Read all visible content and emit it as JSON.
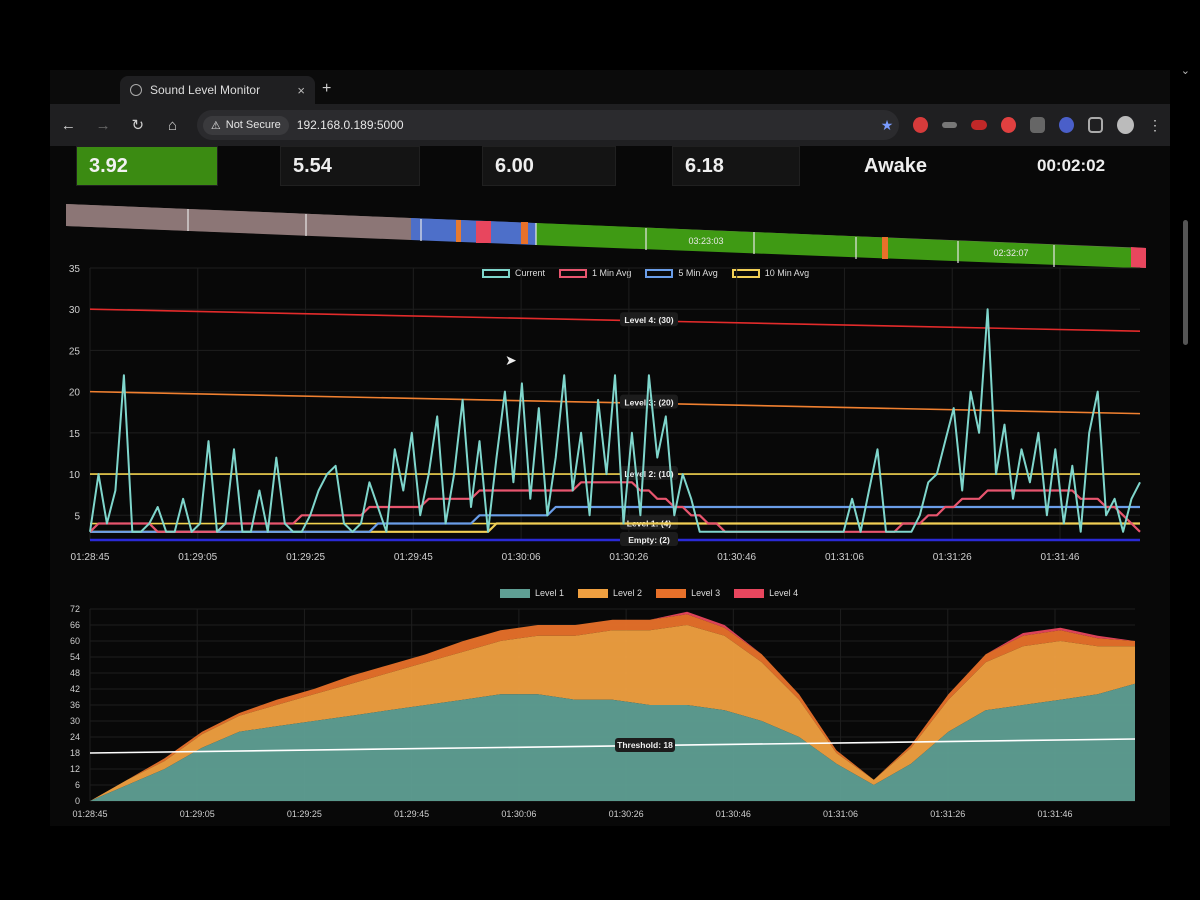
{
  "browser": {
    "tab_title": "Sound Level Monitor",
    "tab_close": "×",
    "new_tab": "+",
    "security_label": "Not Secure",
    "url": "192.168.0.189:5000"
  },
  "stats": {
    "current": "3.92",
    "avg1": "5.54",
    "avg5": "6.00",
    "avg10": "6.18",
    "state": "Awake",
    "timer": "00:02:02"
  },
  "timeline": {
    "labels": [
      "03:23:03",
      "02:32:07"
    ]
  },
  "chart_data": [
    {
      "type": "line",
      "legend": [
        "Current",
        "1 Min Avg",
        "5 Min Avg",
        "10 Min Avg"
      ],
      "x_ticks": [
        "01:28:45",
        "01:29:05",
        "01:29:25",
        "01:29:45",
        "01:30:06",
        "01:30:26",
        "01:30:46",
        "01:31:06",
        "01:31:26",
        "01:31:46"
      ],
      "y_ticks": [
        5,
        10,
        15,
        20,
        25,
        30,
        35
      ],
      "ylim": [
        2,
        35
      ],
      "grid": true,
      "colors": {
        "current": "#7fd6cc",
        "avg1": "#e8556e",
        "avg5": "#6a9de8",
        "avg10": "#f2cf55"
      },
      "thresholds": [
        {
          "label": "Level 4: (30)",
          "value": 30,
          "color": "#e32b2b"
        },
        {
          "label": "Level 3: (20)",
          "value": 20,
          "color": "#f08030"
        },
        {
          "label": "Level 2: (10)",
          "value": 10,
          "color": "#f2d34f"
        },
        {
          "label": "Level 1: (4)",
          "value": 4,
          "color": "#f2d34f"
        },
        {
          "label": "Empty: (2)",
          "value": 2,
          "color": "#2a2ad6"
        }
      ],
      "series": [
        {
          "name": "Current",
          "values": [
            3,
            10,
            4,
            8,
            22,
            3,
            3,
            4,
            6,
            3,
            3,
            7,
            3,
            4,
            14,
            3,
            4,
            13,
            3,
            3,
            8,
            3,
            12,
            4,
            3,
            3,
            5,
            8,
            10,
            11,
            4,
            3,
            4,
            9,
            6,
            3,
            13,
            8,
            15,
            5,
            10,
            17,
            4,
            10,
            19,
            6,
            14,
            3,
            12,
            20,
            9,
            21,
            7,
            18,
            5,
            12,
            22,
            8,
            15,
            5,
            19,
            10,
            22,
            4,
            15,
            5,
            22,
            12,
            17,
            5,
            10,
            7,
            3,
            3,
            3,
            3,
            3,
            3,
            3,
            3,
            3,
            3,
            3,
            3,
            3,
            3,
            3,
            3,
            3,
            3,
            7,
            3,
            8,
            13,
            3,
            3,
            3,
            3,
            5,
            9,
            10,
            14,
            18,
            8,
            20,
            15,
            30,
            10,
            16,
            7,
            13,
            9,
            15,
            5,
            13,
            4,
            11,
            3,
            15,
            20,
            5,
            7,
            3,
            7,
            9
          ]
        },
        {
          "name": "1 Min Avg",
          "values": [
            3,
            4,
            4,
            4,
            4,
            4,
            4,
            4,
            3,
            3,
            3,
            3,
            3,
            3,
            3,
            3,
            4,
            4,
            4,
            4,
            4,
            4,
            4,
            4,
            4,
            5,
            5,
            5,
            5,
            5,
            5,
            5,
            5,
            6,
            6,
            6,
            6,
            6,
            6,
            6,
            7,
            7,
            7,
            7,
            7,
            7,
            8,
            8,
            8,
            8,
            8,
            8,
            8,
            8,
            8,
            8,
            8,
            8,
            9,
            9,
            9,
            9,
            9,
            9,
            9,
            8,
            8,
            7,
            7,
            6,
            6,
            5,
            5,
            4,
            4,
            3,
            3,
            3,
            3,
            3,
            3,
            3,
            3,
            3,
            3,
            3,
            3,
            3,
            3,
            3,
            3,
            3,
            3,
            3,
            3,
            3,
            4,
            4,
            4,
            5,
            5,
            6,
            6,
            7,
            7,
            7,
            8,
            8,
            8,
            8,
            8,
            8,
            8,
            8,
            8,
            8,
            8,
            7,
            7,
            7,
            6,
            6,
            5,
            4,
            3
          ]
        },
        {
          "name": "5 Min Avg",
          "values": [
            3,
            3,
            3,
            3,
            3,
            3,
            3,
            3,
            3,
            3,
            3,
            3,
            3,
            3,
            3,
            3,
            3,
            3,
            3,
            3,
            3,
            3,
            3,
            3,
            3,
            3,
            3,
            3,
            3,
            3,
            3,
            3,
            3,
            3,
            4,
            4,
            4,
            4,
            4,
            4,
            4,
            4,
            4,
            4,
            4,
            4,
            5,
            5,
            5,
            5,
            5,
            5,
            5,
            5,
            5,
            6,
            6,
            6,
            6,
            6,
            6,
            6,
            6,
            6,
            6,
            6,
            6,
            6,
            6,
            6,
            6,
            6,
            6,
            6,
            6,
            6,
            6,
            6,
            6,
            6,
            6,
            6,
            6,
            6,
            6,
            6,
            6,
            6,
            6,
            6,
            6,
            6,
            6,
            6,
            6,
            6,
            6,
            6,
            6,
            6,
            6,
            6,
            6,
            6,
            6,
            6,
            6,
            6,
            6,
            6,
            6,
            6,
            6,
            6,
            6,
            6,
            6,
            6,
            6,
            6,
            6,
            6,
            6,
            6,
            6
          ]
        },
        {
          "name": "10 Min Avg",
          "values": [
            3,
            3,
            3,
            3,
            3,
            3,
            3,
            3,
            3,
            3,
            3,
            3,
            3,
            3,
            3,
            3,
            3,
            3,
            3,
            3,
            3,
            3,
            3,
            3,
            3,
            3,
            3,
            3,
            3,
            3,
            3,
            3,
            3,
            3,
            3,
            3,
            3,
            3,
            3,
            3,
            3,
            3,
            3,
            3,
            3,
            3,
            3,
            3,
            4,
            4,
            4,
            4,
            4,
            4,
            4,
            4,
            4,
            4,
            4,
            4,
            4,
            4,
            4,
            4,
            4,
            4,
            4,
            4,
            4,
            4,
            4,
            4,
            4,
            4,
            4,
            4,
            4,
            4,
            4,
            4,
            4,
            4,
            4,
            4,
            4,
            4,
            4,
            4,
            4,
            4,
            4,
            4,
            4,
            4,
            4,
            4,
            4,
            4,
            4,
            4,
            4,
            4,
            4,
            4,
            4,
            4,
            4,
            4,
            4,
            4,
            4,
            4,
            4,
            4,
            4,
            4,
            4,
            4,
            4,
            4,
            4,
            4,
            4,
            4,
            4
          ]
        }
      ]
    },
    {
      "type": "area",
      "stacked": true,
      "legend": [
        "Level 1",
        "Level 2",
        "Level 3",
        "Level 4"
      ],
      "x_ticks": [
        "01:28:45",
        "01:29:05",
        "01:29:25",
        "01:29:45",
        "01:30:06",
        "01:30:26",
        "01:30:46",
        "01:31:06",
        "01:31:26",
        "01:31:46"
      ],
      "y_ticks": [
        0,
        6,
        12,
        18,
        24,
        30,
        36,
        42,
        48,
        54,
        60,
        66,
        72
      ],
      "ylim": [
        0,
        72
      ],
      "grid": true,
      "colors": {
        "Level 1": "#5f9f94",
        "Level 2": "#f0a040",
        "Level 3": "#e8712a",
        "Level 4": "#e8465e"
      },
      "threshold": {
        "label": "Threshold: 18",
        "value": 18,
        "color": "#ffffff"
      },
      "series": [
        {
          "name": "Level 1",
          "values": [
            0,
            6,
            12,
            20,
            26,
            28,
            30,
            32,
            34,
            36,
            38,
            40,
            40,
            38,
            38,
            36,
            36,
            34,
            30,
            24,
            14,
            6,
            14,
            26,
            34,
            36,
            38,
            40,
            44
          ]
        },
        {
          "name": "Level 2",
          "values": [
            0,
            2,
            3,
            5,
            6,
            8,
            10,
            12,
            14,
            16,
            18,
            20,
            22,
            24,
            26,
            28,
            30,
            28,
            22,
            14,
            4,
            2,
            6,
            12,
            18,
            22,
            22,
            18,
            14
          ]
        },
        {
          "name": "Level 3",
          "values": [
            0,
            0,
            1,
            1,
            1,
            2,
            2,
            3,
            3,
            3,
            4,
            4,
            4,
            4,
            4,
            4,
            4,
            3,
            3,
            2,
            1,
            0,
            1,
            2,
            3,
            4,
            4,
            3,
            2
          ]
        },
        {
          "name": "Level 4",
          "values": [
            0,
            0,
            0,
            0,
            0,
            0,
            0,
            0,
            0,
            0,
            0,
            0,
            0,
            0,
            0,
            0,
            1,
            1,
            0,
            0,
            0,
            0,
            0,
            0,
            0,
            1,
            1,
            1,
            0
          ]
        }
      ]
    }
  ]
}
